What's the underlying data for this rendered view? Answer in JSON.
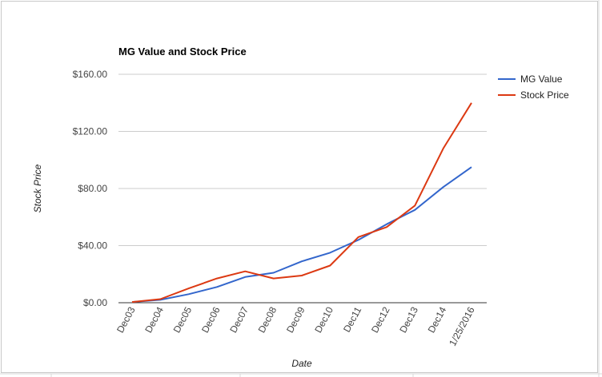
{
  "chart_data": {
    "type": "line",
    "title": "MG Value and Stock Price",
    "xlabel": "Date",
    "ylabel": "Stock Price",
    "categories": [
      "Dec03",
      "Dec04",
      "Dec05",
      "Dec06",
      "Dec07",
      "Dec08",
      "Dec09",
      "Dec10",
      "Dec11",
      "Dec12",
      "Dec13",
      "Dec14",
      "1/25/2016"
    ],
    "yticks": [
      "$0.00",
      "$40.00",
      "$80.00",
      "$120.00",
      "$160.00"
    ],
    "ylim": [
      0,
      160
    ],
    "grid": true,
    "legend_position": "right",
    "series": [
      {
        "name": "MG Value",
        "color": "#3366cc",
        "values": [
          0.5,
          2,
          6,
          11,
          18,
          21,
          29,
          35,
          44,
          55,
          65,
          81,
          95
        ]
      },
      {
        "name": "Stock Price",
        "color": "#dc3912",
        "values": [
          0.5,
          2.5,
          10,
          17,
          22,
          17,
          19,
          26,
          46,
          53,
          68,
          108,
          140
        ]
      }
    ]
  }
}
